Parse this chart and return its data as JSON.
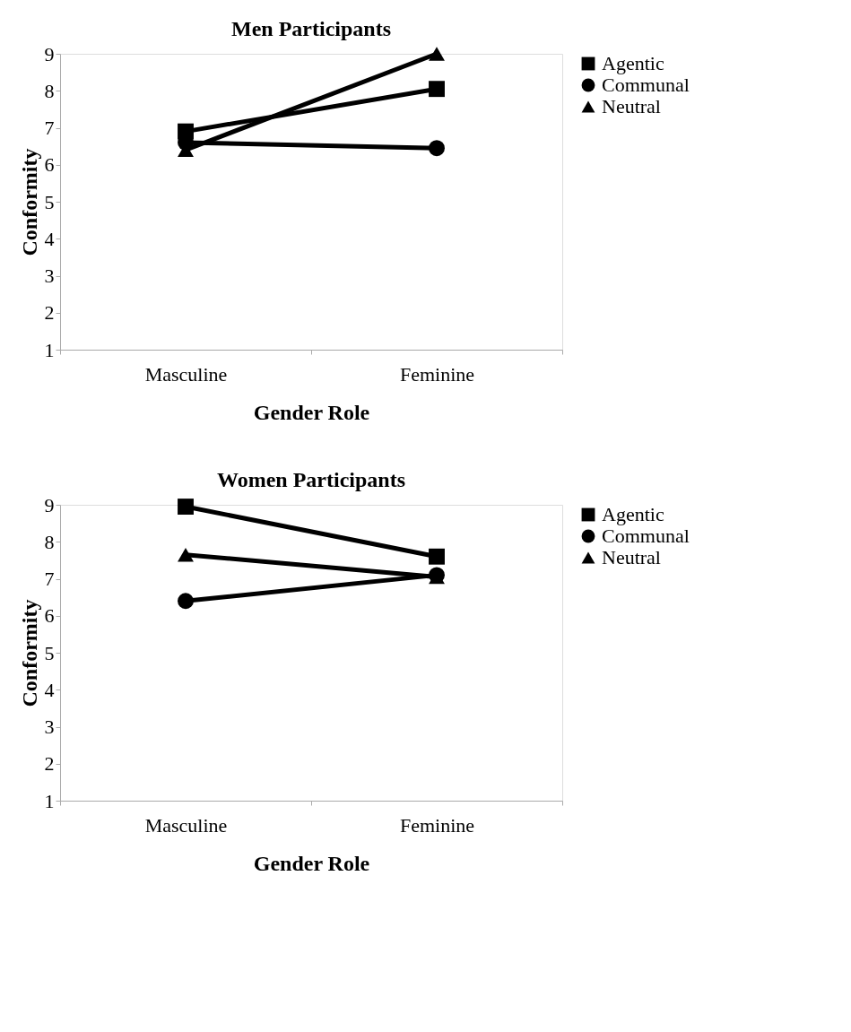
{
  "chart_data": [
    {
      "type": "line",
      "title": "Men Participants",
      "xlabel": "Gender Role",
      "ylabel": "Conformity",
      "categories": [
        "Masculine",
        "Feminine"
      ],
      "ylim": [
        1,
        9
      ],
      "yticks": [
        1,
        2,
        3,
        4,
        5,
        6,
        7,
        8,
        9
      ],
      "grid": false,
      "legend": "right",
      "line_style": "solid",
      "series": [
        {
          "name": "Agentic",
          "color": "#000000",
          "marker": "square",
          "values": [
            6.9,
            8.05
          ]
        },
        {
          "name": "Communal",
          "color": "#000000",
          "marker": "circle",
          "values": [
            6.6,
            6.45
          ]
        },
        {
          "name": "Neutral",
          "color": "#000000",
          "marker": "triangle",
          "values": [
            6.4,
            9.0
          ]
        }
      ]
    },
    {
      "type": "line",
      "title": "Women Participants",
      "xlabel": "Gender Role",
      "ylabel": "Conformity",
      "categories": [
        "Masculine",
        "Feminine"
      ],
      "ylim": [
        1,
        9
      ],
      "yticks": [
        1,
        2,
        3,
        4,
        5,
        6,
        7,
        8,
        9
      ],
      "grid": false,
      "legend": "right",
      "line_style": "solid",
      "series": [
        {
          "name": "Agentic",
          "color": "#000000",
          "marker": "square",
          "values": [
            8.95,
            7.6
          ]
        },
        {
          "name": "Communal",
          "color": "#000000",
          "marker": "circle",
          "values": [
            6.4,
            7.1
          ]
        },
        {
          "name": "Neutral",
          "color": "#000000",
          "marker": "triangle",
          "values": [
            7.65,
            7.05
          ]
        }
      ]
    }
  ]
}
